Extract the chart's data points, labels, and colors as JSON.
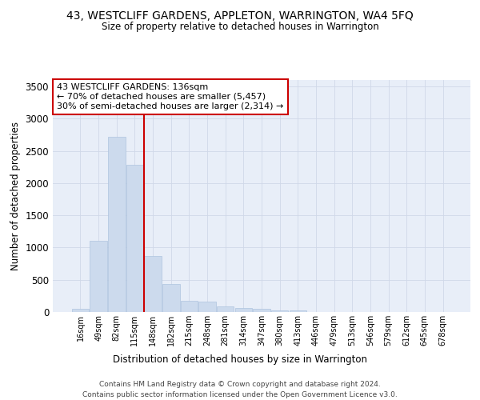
{
  "title": "43, WESTCLIFF GARDENS, APPLETON, WARRINGTON, WA4 5FQ",
  "subtitle": "Size of property relative to detached houses in Warrington",
  "xlabel": "Distribution of detached houses by size in Warrington",
  "ylabel": "Number of detached properties",
  "bar_color": "#ccdaed",
  "bar_edgecolor": "#aec4de",
  "gridcolor": "#d0d8e8",
  "background_color": "#e8eef8",
  "categories": [
    "16sqm",
    "49sqm",
    "82sqm",
    "115sqm",
    "148sqm",
    "182sqm",
    "215sqm",
    "248sqm",
    "281sqm",
    "314sqm",
    "347sqm",
    "380sqm",
    "413sqm",
    "446sqm",
    "479sqm",
    "513sqm",
    "546sqm",
    "579sqm",
    "612sqm",
    "645sqm",
    "678sqm"
  ],
  "values": [
    50,
    1110,
    2720,
    2280,
    870,
    430,
    175,
    165,
    90,
    60,
    55,
    30,
    25,
    5,
    0,
    0,
    0,
    0,
    0,
    0,
    0
  ],
  "redline_index": 4,
  "annotation_text": "43 WESTCLIFF GARDENS: 136sqm\n← 70% of detached houses are smaller (5,457)\n30% of semi-detached houses are larger (2,314) →",
  "annotation_box_facecolor": "#ffffff",
  "annotation_box_edgecolor": "#cc0000",
  "redline_color": "#cc0000",
  "ylim": [
    0,
    3600
  ],
  "yticks": [
    0,
    500,
    1000,
    1500,
    2000,
    2500,
    3000,
    3500
  ],
  "footer1": "Contains HM Land Registry data © Crown copyright and database right 2024.",
  "footer2": "Contains public sector information licensed under the Open Government Licence v3.0."
}
